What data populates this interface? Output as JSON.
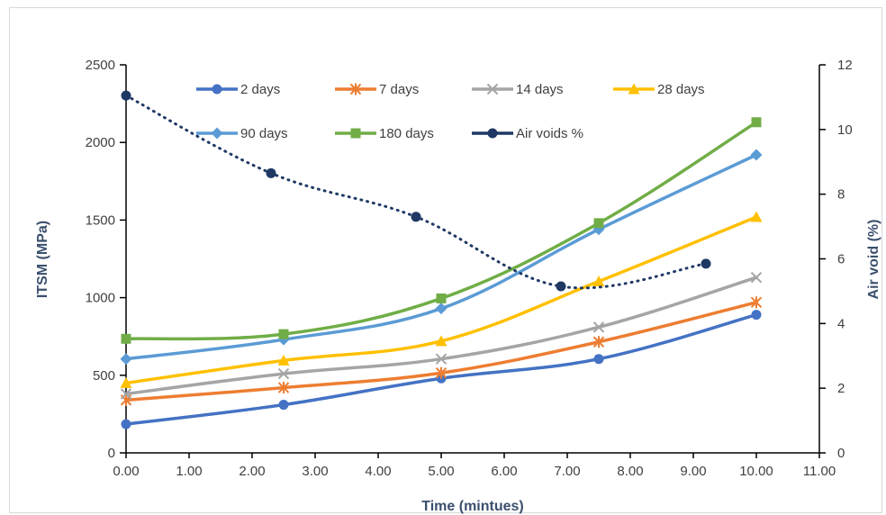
{
  "chart_data": {
    "type": "line",
    "title": "",
    "xlabel": "Time (mintues)",
    "ylabel": "ITSM (MPa)",
    "y2label": "Air void (%)",
    "xlim": [
      0,
      11
    ],
    "ylim": [
      0,
      2500
    ],
    "y2lim": [
      0,
      12
    ],
    "x_ticks": [
      "0.00",
      "1.00",
      "2.00",
      "3.00",
      "4.00",
      "5.00",
      "6.00",
      "7.00",
      "8.00",
      "9.00",
      "10.00",
      "11.00"
    ],
    "y_ticks": [
      "0",
      "500",
      "1000",
      "1500",
      "2000",
      "2500"
    ],
    "y2_ticks": [
      "0",
      "2",
      "4",
      "6",
      "8",
      "10",
      "12"
    ],
    "legend_position": "top-inside",
    "grid": false,
    "series": [
      {
        "name": "2 days",
        "axis": "left",
        "color": "#4472c4",
        "marker": "circle",
        "dash": "solid",
        "x": [
          0,
          2.5,
          5,
          7.5,
          10
        ],
        "y": [
          185,
          310,
          480,
          605,
          890
        ]
      },
      {
        "name": "7 days",
        "axis": "left",
        "color": "#ed7d31",
        "marker": "asterisk",
        "dash": "solid",
        "x": [
          0,
          2.5,
          5,
          7.5,
          10
        ],
        "y": [
          340,
          420,
          515,
          715,
          970
        ]
      },
      {
        "name": "14 days",
        "axis": "left",
        "color": "#a5a5a5",
        "marker": "x",
        "dash": "solid",
        "x": [
          0,
          2.5,
          5,
          7.5,
          10
        ],
        "y": [
          380,
          510,
          605,
          810,
          1130
        ]
      },
      {
        "name": "28 days",
        "axis": "left",
        "color": "#ffc000",
        "marker": "triangle",
        "dash": "solid",
        "x": [
          0,
          2.5,
          5,
          7.5,
          10
        ],
        "y": [
          450,
          595,
          720,
          1105,
          1520
        ]
      },
      {
        "name": "90 days",
        "axis": "left",
        "color": "#5b9bd5",
        "marker": "diamond",
        "dash": "solid",
        "x": [
          0,
          2.5,
          5,
          7.5,
          10
        ],
        "y": [
          605,
          730,
          930,
          1440,
          1920
        ]
      },
      {
        "name": "180 days",
        "axis": "left",
        "color": "#70ad47",
        "marker": "square",
        "dash": "solid",
        "x": [
          0,
          2.5,
          5,
          7.5,
          10
        ],
        "y": [
          735,
          765,
          995,
          1480,
          2130
        ]
      },
      {
        "name": "Air voids %",
        "axis": "right",
        "color": "#1f3864",
        "marker": "circle",
        "dash": "dotted",
        "x": [
          0,
          2.3,
          4.6,
          6.9,
          9.2
        ],
        "y": [
          11.05,
          8.65,
          7.3,
          5.15,
          5.85
        ]
      }
    ]
  }
}
